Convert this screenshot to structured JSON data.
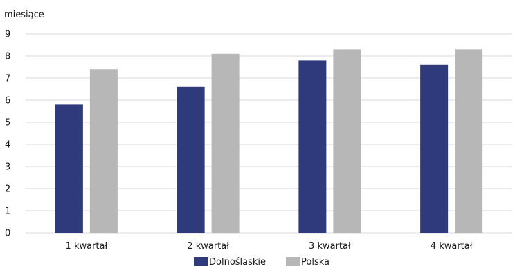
{
  "chart_data": {
    "type": "bar",
    "ylabel": "miesiące",
    "categories": [
      "1 kwartał",
      "2 kwartał",
      "3 kwartał",
      "4 kwartał"
    ],
    "series": [
      {
        "name": "Dolnośląskie",
        "color": "#2e3a7c",
        "values": [
          5.8,
          6.6,
          7.8,
          7.6
        ]
      },
      {
        "name": "Polska",
        "color": "#b7b7b7",
        "values": [
          7.4,
          8.1,
          8.3,
          8.3
        ]
      }
    ],
    "ylim": [
      0,
      9
    ],
    "yticks": [
      "0",
      "1",
      "2",
      "3",
      "4",
      "5",
      "6",
      "7",
      "8",
      "9"
    ],
    "grid": true,
    "legend": "bottom"
  }
}
